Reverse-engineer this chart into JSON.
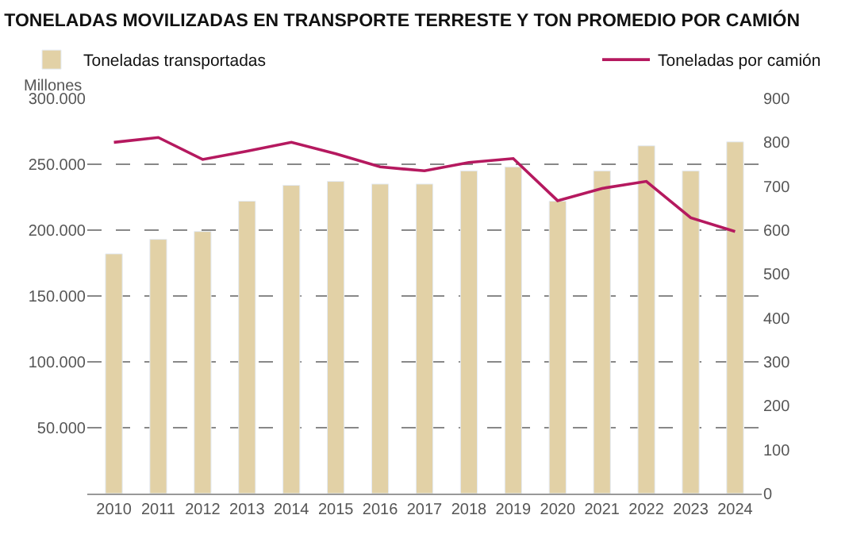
{
  "chart_data": {
    "type": "bar",
    "title": "TONELADAS MOVILIZADAS EN TRANSPORTE TERRESTE Y TON PROMEDIO POR CAMIÓN",
    "ylabel": "Millones",
    "categories": [
      "2010",
      "2011",
      "2012",
      "2013",
      "2014",
      "2015",
      "2016",
      "2017",
      "2018",
      "2019",
      "2020",
      "2021",
      "2022",
      "2023",
      "2024"
    ],
    "series": [
      {
        "name": "Toneladas transportadas",
        "color": "#e2d1a6",
        "values": [
          182000,
          193000,
          199000,
          222000,
          234000,
          237000,
          235000,
          235000,
          245000,
          248000,
          222000,
          245000,
          264000,
          245000,
          267000
        ]
      },
      {
        "name": "Toneladas por camión",
        "type": "line",
        "axis": "y2",
        "color": "#b5195f",
        "values": [
          800,
          811,
          761,
          780,
          800,
          774,
          744,
          735,
          754,
          763,
          667,
          695,
          711,
          628,
          597
        ]
      }
    ],
    "ylim": [
      0,
      300000
    ],
    "yticks": [
      {
        "value": 0,
        "label": null
      },
      {
        "value": 50000,
        "label": "50.000"
      },
      {
        "value": 100000,
        "label": "100.000"
      },
      {
        "value": 150000,
        "label": "150.000"
      },
      {
        "value": 200000,
        "label": "200.000"
      },
      {
        "value": 250000,
        "label": "250.000"
      },
      {
        "value": 300000,
        "label": "300.000"
      }
    ],
    "y2lim": [
      0,
      900
    ],
    "y2ticks": [
      0,
      100,
      200,
      300,
      400,
      500,
      600,
      700,
      800,
      900
    ],
    "grid": "y",
    "legend": "top",
    "marker": "none",
    "line_style": "solid"
  }
}
